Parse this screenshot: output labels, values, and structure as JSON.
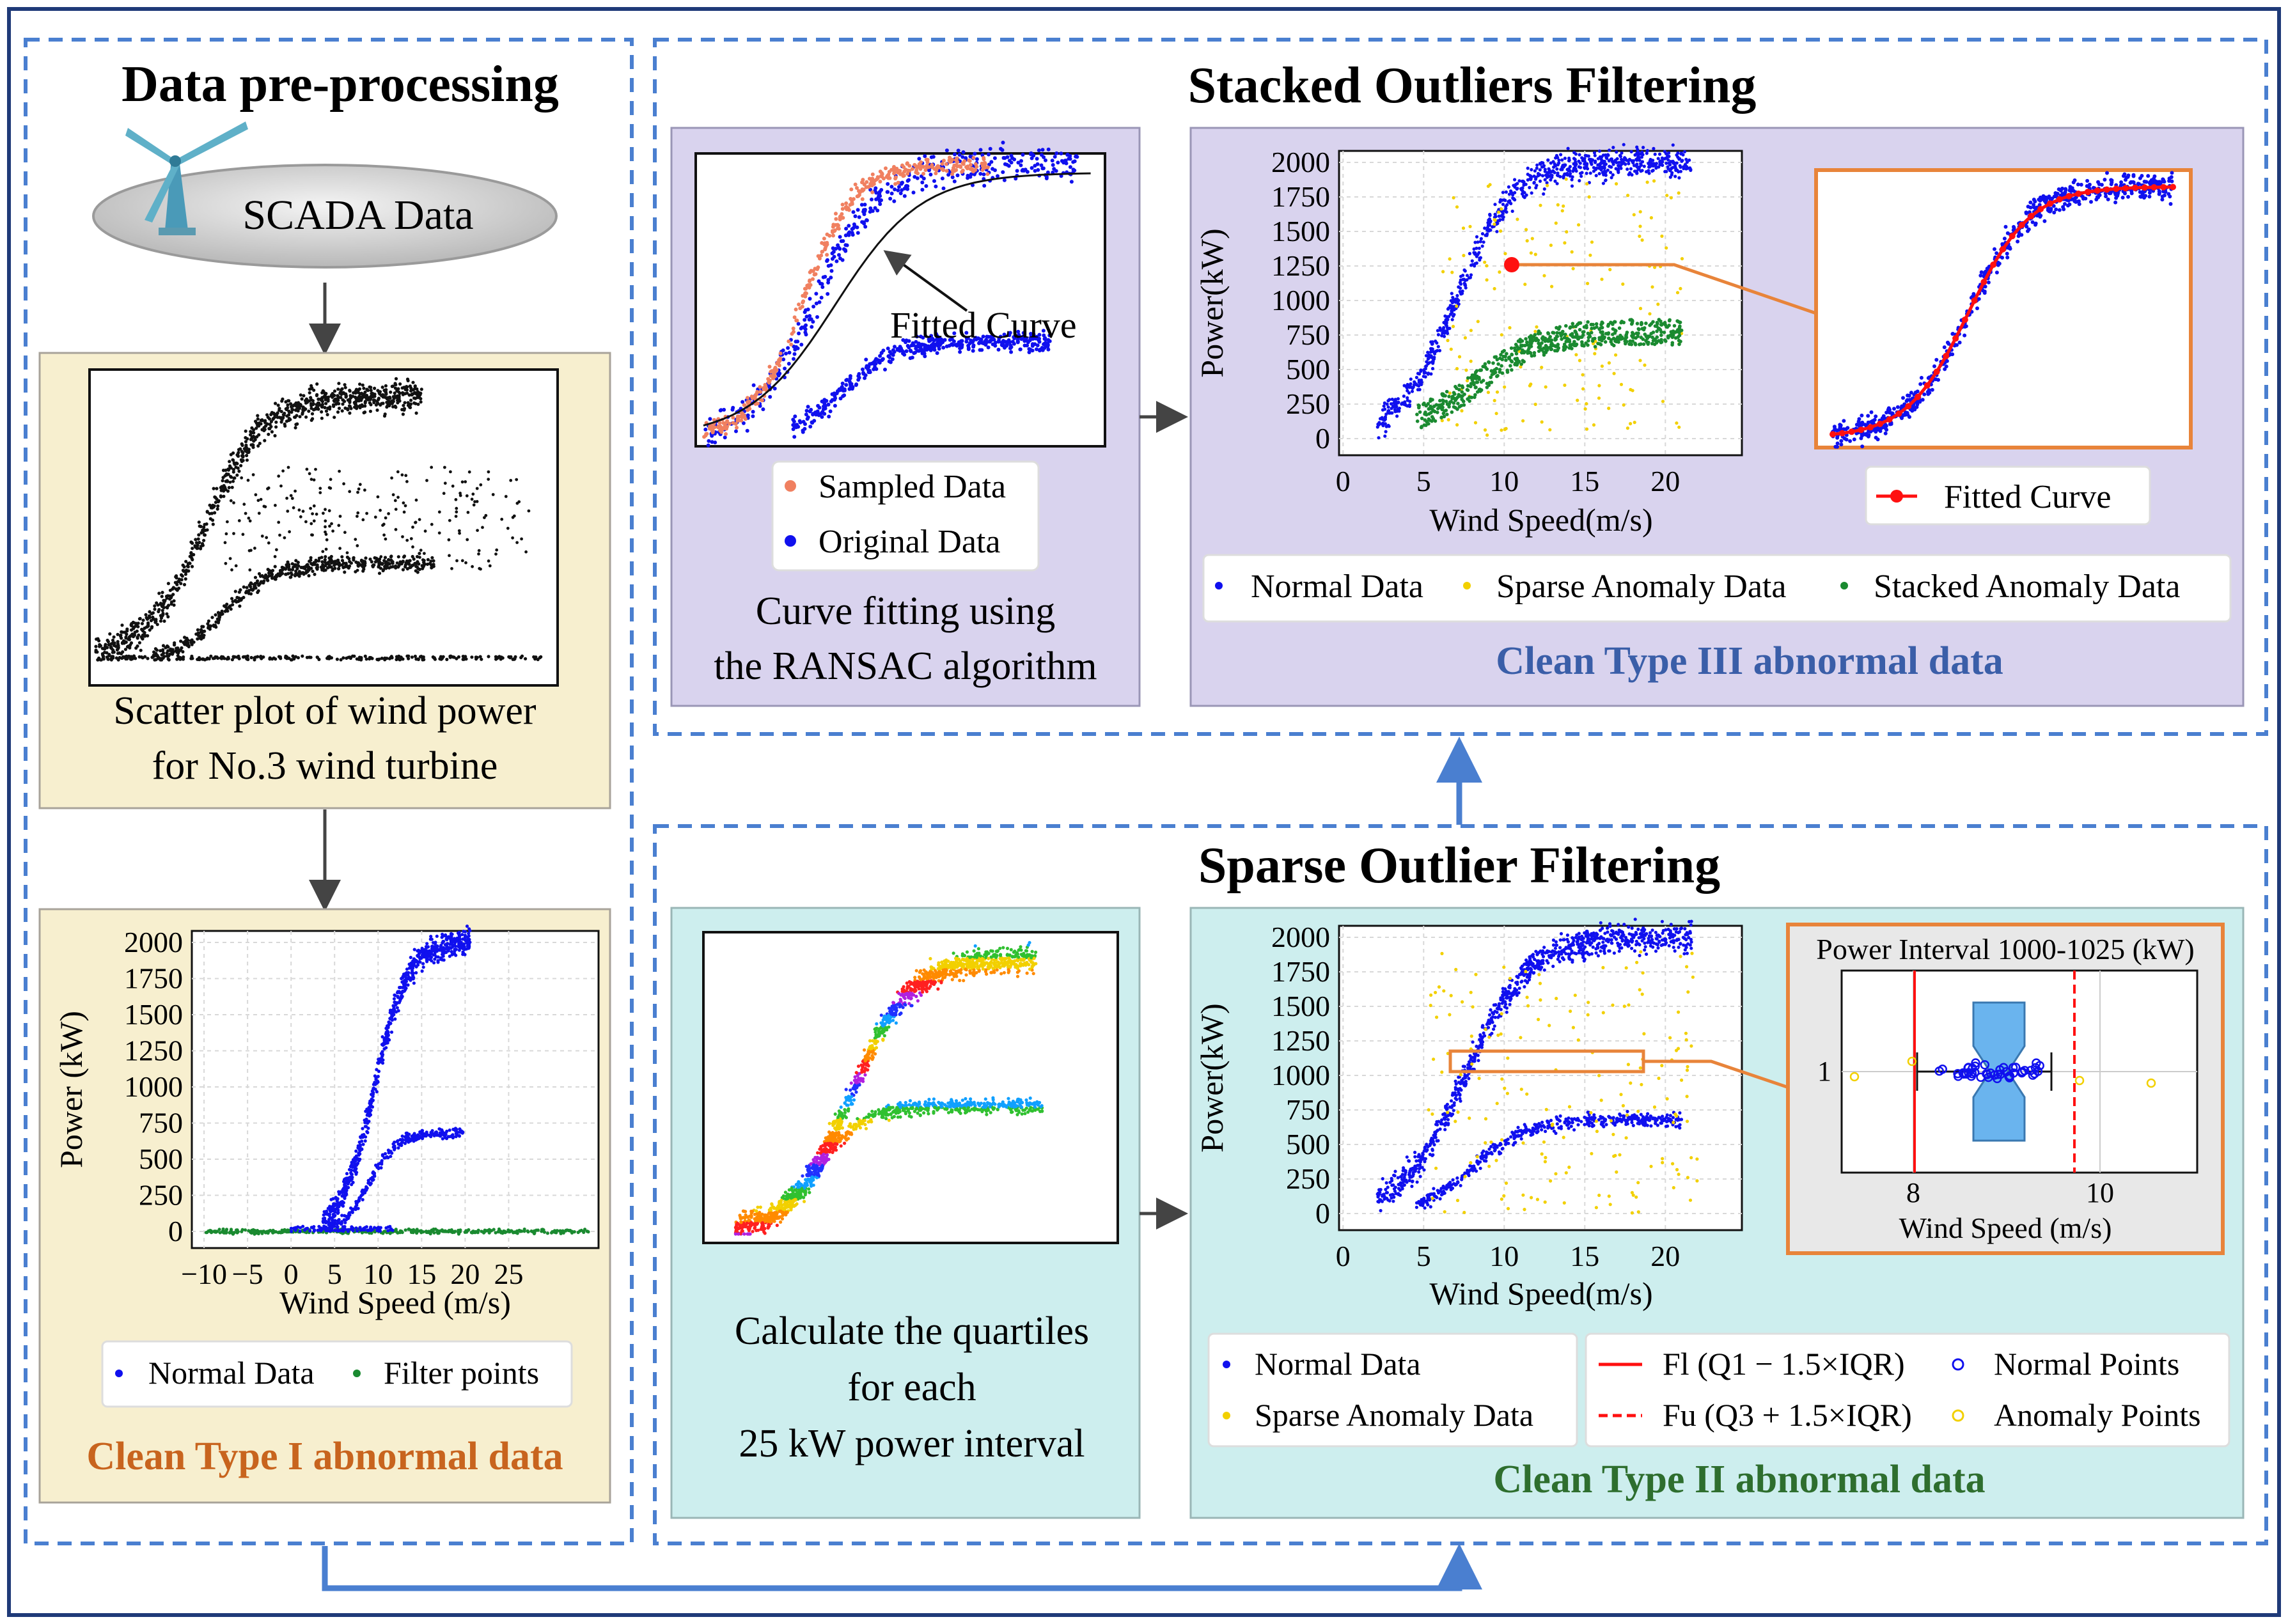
{
  "sections": {
    "preprocess_title": "Data pre-processing",
    "stacked_title": "Stacked Outliers Filtering",
    "sparse_title": "Sparse Outlier Filtering"
  },
  "scada": {
    "label": "SCADA Data"
  },
  "scatter_caption": {
    "line1": "Scatter plot of wind power",
    "line2": "for No.3 wind turbine"
  },
  "clean_labels": {
    "type1": "Clean Type I abnormal data",
    "type2": "Clean Type II abnormal data",
    "type3": "Clean Type III abnormal data"
  },
  "type1_plot": {
    "ylabel": "Power (kW)",
    "xlabel": "Wind Speed (m/s)",
    "yticks": [
      "2000",
      "1750",
      "1500",
      "1250",
      "1000",
      "750",
      "500",
      "250",
      "0"
    ],
    "xticks": [
      "−10",
      "−5",
      "0",
      "5",
      "10",
      "15",
      "20",
      "25"
    ],
    "legend": [
      "Normal Data",
      "Filter points"
    ]
  },
  "ransac": {
    "annotation": "Fitted Curve",
    "legend": [
      "Sampled Data",
      "Original Data"
    ],
    "caption_line1": "Curve fitting using",
    "caption_line2": "the RANSAC algorithm"
  },
  "stacked_plot": {
    "ylabel": "Power(kW)",
    "xlabel": "Wind Speed(m/s)",
    "yticks": [
      "2000",
      "1750",
      "1500",
      "1250",
      "1000",
      "750",
      "500",
      "250",
      "0"
    ],
    "xticks": [
      "0",
      "5",
      "10",
      "15",
      "20"
    ],
    "fitted_legend": "Fitted Curve",
    "legend": [
      "Normal Data",
      "Sparse Anomaly Data",
      "Stacked Anomaly Data"
    ]
  },
  "quartile": {
    "line1": "Calculate the quartiles",
    "line2": "for each",
    "line3": "25 kW power interval"
  },
  "sparse_plot": {
    "ylabel": "Power(kW)",
    "xlabel": "Wind Speed(m/s)",
    "yticks": [
      "2000",
      "1750",
      "1500",
      "1250",
      "1000",
      "750",
      "500",
      "250",
      "0"
    ],
    "xticks": [
      "0",
      "5",
      "10",
      "15",
      "20"
    ],
    "legend_left": [
      "Normal Data",
      "Sparse Anomaly Data"
    ],
    "legend_right": [
      "Fl (Q1 − 1.5×IQR)",
      "Fu (Q3 + 1.5×IQR)",
      "Normal Points",
      "Anomaly Points"
    ]
  },
  "boxplot": {
    "title": "Power Interval 1000-1025 (kW)",
    "ytick": "1",
    "xticks": [
      "8",
      "10"
    ],
    "xlabel": "Wind Speed (m/s)"
  },
  "colors": {
    "normal": "#1010ee",
    "sparse": "#f2d000",
    "stacked": "#1a8a30",
    "sampled": "#f08060",
    "fitted": "#ff1010",
    "box": "#6ab4ee",
    "orange": "#e8843a",
    "dashed_blue": "#4a7fd0",
    "yellow_panel": "#f7efcf",
    "purple_panel": "#d9d3ee",
    "teal_panel": "#cdeeee",
    "type1": "#c8641e",
    "type2": "#2e6e2e",
    "type3": "#3a5ea8"
  }
}
